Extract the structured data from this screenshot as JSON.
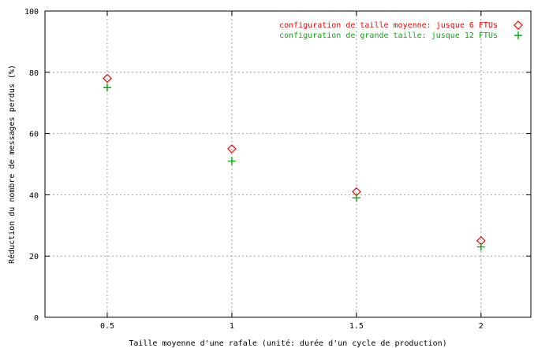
{
  "chart_data": {
    "type": "scatter",
    "title": "",
    "xlabel": "Taille moyenne d'une rafale (unité: durée d'un cycle de production)",
    "ylabel": "Réduction du nombre de messages perdus (%)",
    "xlim": [
      0.25,
      2.2
    ],
    "ylim": [
      0,
      100
    ],
    "xticks": [
      0.5,
      1,
      1.5,
      2
    ],
    "xtick_labels": [
      "0.5",
      "1",
      "1.5",
      "2"
    ],
    "yticks": [
      0,
      20,
      40,
      60,
      80,
      100
    ],
    "ytick_labels": [
      "0",
      "20",
      "40",
      "60",
      "80",
      "100"
    ],
    "grid": true,
    "legend_position": "top-right",
    "series": [
      {
        "name": "configuration de taille moyenne: jusque 6 FTUs",
        "marker": "diamond",
        "color": "#ff0000",
        "x": [
          0.5,
          1,
          1.5,
          2
        ],
        "y": [
          78,
          55,
          41,
          25
        ]
      },
      {
        "name": "configuration de grande taille: jusque 12 FTUs",
        "marker": "plus",
        "color": "#00b000",
        "x": [
          0.5,
          1,
          1.5,
          2
        ],
        "y": [
          75,
          51,
          39,
          23
        ]
      }
    ]
  }
}
